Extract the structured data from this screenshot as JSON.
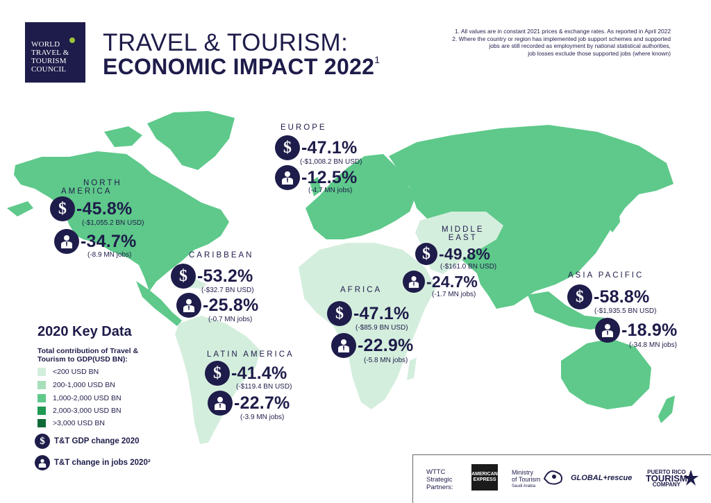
{
  "logo": {
    "lines": [
      "WORLD",
      "TRAVEL &",
      "TOURISM",
      "COUNCIL"
    ]
  },
  "title": {
    "line1": "TRAVEL & TOURISM:",
    "line2": "ECONOMIC IMPACT 2022",
    "sup": "1"
  },
  "notes": [
    "1. All values are in constant 2021 prices & exchange rates. As reported in April 2022",
    "2. Where the country or region has implemented job support schemes and supported",
    "jobs are still recorded as employment by national statistical authorities,",
    "job losses exclude those supported jobs (where known)"
  ],
  "regions": {
    "north_america": {
      "name1": "NORTH",
      "name2": "AMERICA",
      "gdp": "-45.8%",
      "gdp_sub": "(-$1,055.2 BN USD)",
      "jobs": "-34.7%",
      "jobs_sub": "(-8.9 MN jobs)"
    },
    "caribbean": {
      "name": "CARIBBEAN",
      "gdp": "-53.2%",
      "gdp_sub": "(-$32.7 BN USD)",
      "jobs": "-25.8%",
      "jobs_sub": "(-0.7 MN jobs)"
    },
    "latin_america": {
      "name": "LATIN AMERICA",
      "gdp": "-41.4%",
      "gdp_sub": "(-$119.4 BN USD)",
      "jobs": "-22.7%",
      "jobs_sub": "(-3.9 MN jobs)"
    },
    "europe": {
      "name": "EUROPE",
      "gdp": "-47.1%",
      "gdp_sub": "(-$1,008.2 BN USD)",
      "jobs": "-12.5%",
      "jobs_sub": "(-4.7 MN jobs)"
    },
    "africa": {
      "name": "AFRICA",
      "gdp": "-47.1%",
      "gdp_sub": "(-$85.9 BN USD)",
      "jobs": "-22.9%",
      "jobs_sub": "(-5.8 MN jobs)"
    },
    "middle_east": {
      "name1": "MIDDLE",
      "name2": "EAST",
      "gdp": "-49.8%",
      "gdp_sub": "(-$161.0 BN USD)",
      "jobs": "-24.7%",
      "jobs_sub": "(-1.7 MN jobs)"
    },
    "asia_pacific": {
      "name": "ASIA PACIFIC",
      "gdp": "-58.8%",
      "gdp_sub": "(-$1,935.5 BN USD)",
      "jobs": "-18.9%",
      "jobs_sub": "(-34.8 MN jobs)"
    }
  },
  "key": {
    "title": "2020 Key Data",
    "subtitle": "Total contribution of Travel & Tourism to GDP(USD BN):",
    "legend": [
      {
        "label": "<200 USD BN",
        "color": "#d4eedd"
      },
      {
        "label": "200-1,000 USD BN",
        "color": "#a7dfba"
      },
      {
        "label": "1,000-2,000 USD BN",
        "color": "#5ec98a"
      },
      {
        "label": "2,000-3,000 USD BN",
        "color": "#1f9a55"
      },
      {
        "label": ">3,000 USD BN",
        "color": "#0e6b37"
      }
    ],
    "gdp_icon_label": "T&T GDP change 2020",
    "jobs_icon_label": "T&T change in jobs 2020²"
  },
  "colors": {
    "navy": "#1e1c4a",
    "land_main": "#5ec98a",
    "land_light": "#d4eedd",
    "land_mid": "#a7dfba"
  },
  "partners": {
    "label": [
      "WTTC",
      "Strategic",
      "Partners:"
    ],
    "amex": [
      "AMERICAN",
      "EXPRESS"
    ],
    "ministry": [
      "Ministry",
      "of Tourism",
      "Saudi Arabia"
    ],
    "global_rescue": "GLOBAL+rescue",
    "puerto_rico": [
      "PUERTO RICO",
      "TOURISM",
      "COMPANY"
    ]
  }
}
